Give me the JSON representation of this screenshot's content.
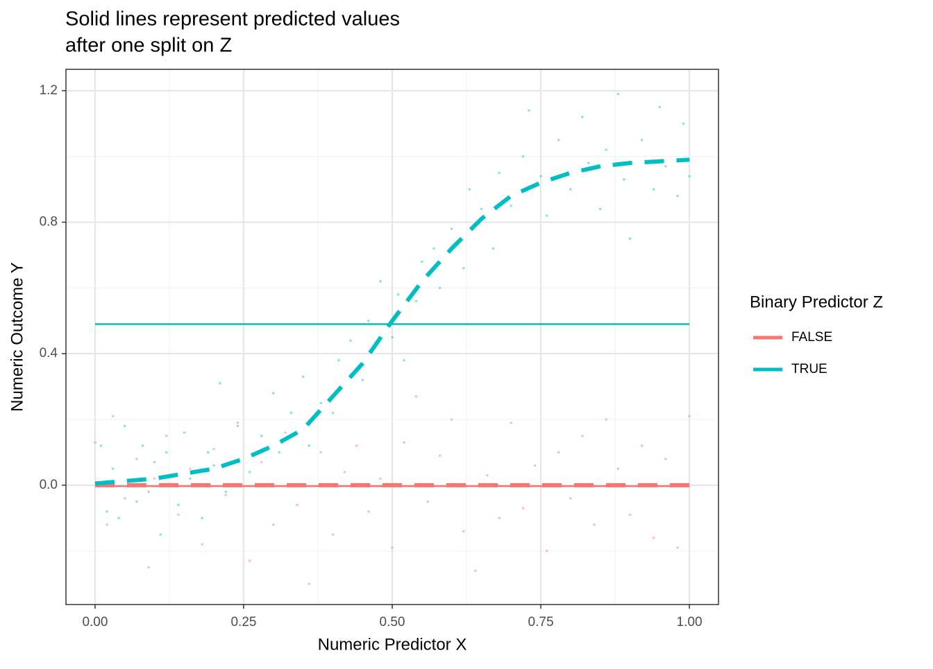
{
  "chart_data": {
    "type": "scatter",
    "title": [
      "Solid lines represent predicted values",
      "after one split on Z"
    ],
    "x_label": "Numeric Predictor X",
    "y_label": "Numeric Outcome Y",
    "legend_title": "Binary Predictor Z",
    "xlim": [
      -0.049,
      1.049
    ],
    "ylim": [
      -0.363,
      1.265
    ],
    "xticks": [
      {
        "value": 0,
        "label": "0.00"
      },
      0.25,
      {
        "value": 0.5,
        "label": "0.50"
      },
      0.75,
      {
        "value": 1,
        "label": "1.00"
      }
    ],
    "yticks": [
      {
        "value": 0,
        "label": "0.0"
      },
      0.4,
      0.8,
      1.2
    ],
    "grid": true,
    "series": [
      {
        "name": "FALSE",
        "color": "#F8766D",
        "x": [
          0.0,
          0.02,
          0.03,
          0.05,
          0.07,
          0.09,
          0.1,
          0.12,
          0.14,
          0.16,
          0.18,
          0.2,
          0.22,
          0.24,
          0.26,
          0.28,
          0.3,
          0.32,
          0.34,
          0.36,
          0.38,
          0.4,
          0.42,
          0.44,
          0.46,
          0.48,
          0.5,
          0.52,
          0.54,
          0.56,
          0.58,
          0.6,
          0.62,
          0.64,
          0.66,
          0.68,
          0.7,
          0.72,
          0.74,
          0.76,
          0.78,
          0.8,
          0.82,
          0.84,
          0.86,
          0.88,
          0.9,
          0.92,
          0.94,
          0.96,
          0.98,
          1.0
        ],
        "values": [
          0.13,
          -0.12,
          0.21,
          -0.04,
          0.08,
          -0.25,
          0.02,
          0.15,
          -0.09,
          0.05,
          -0.18,
          0.11,
          -0.03,
          0.19,
          -0.23,
          0.07,
          -0.12,
          0.16,
          -0.06,
          -0.3,
          0.1,
          -0.15,
          0.04,
          0.12,
          -0.08,
          0.02,
          -0.19,
          0.13,
          0.27,
          -0.05,
          0.09,
          0.2,
          -0.14,
          -0.26,
          0.03,
          -0.1,
          0.19,
          -0.07,
          0.06,
          -0.2,
          0.1,
          -0.04,
          0.15,
          -0.12,
          0.2,
          0.05,
          -0.09,
          0.12,
          -0.16,
          0.08,
          -0.19,
          0.21
        ],
        "smooth": {
          "x": [
            0,
            0.25,
            0.5,
            0.75,
            1
          ],
          "values": [
            0,
            0,
            0,
            0,
            0
          ]
        },
        "prediction": {
          "x": [
            0,
            1
          ],
          "values": [
            -0.003,
            -0.003
          ]
        }
      },
      {
        "name": "TRUE",
        "color": "#00BFC4",
        "x": [
          0.01,
          0.02,
          0.03,
          0.04,
          0.05,
          0.06,
          0.07,
          0.08,
          0.09,
          0.1,
          0.11,
          0.12,
          0.13,
          0.14,
          0.15,
          0.16,
          0.18,
          0.19,
          0.2,
          0.21,
          0.22,
          0.24,
          0.26,
          0.28,
          0.3,
          0.31,
          0.33,
          0.35,
          0.36,
          0.38,
          0.4,
          0.41,
          0.43,
          0.45,
          0.46,
          0.48,
          0.5,
          0.51,
          0.52,
          0.54,
          0.55,
          0.57,
          0.58,
          0.6,
          0.62,
          0.63,
          0.65,
          0.67,
          0.68,
          0.7,
          0.72,
          0.73,
          0.75,
          0.76,
          0.78,
          0.8,
          0.82,
          0.83,
          0.85,
          0.86,
          0.88,
          0.89,
          0.9,
          0.92,
          0.94,
          0.95,
          0.96,
          0.98,
          0.99,
          1.0
        ],
        "values": [
          0.12,
          -0.08,
          0.05,
          -0.1,
          0.18,
          0.0,
          -0.05,
          0.12,
          -0.02,
          0.07,
          -0.15,
          0.1,
          0.03,
          -0.06,
          0.16,
          0.02,
          -0.1,
          0.1,
          0.06,
          0.31,
          -0.02,
          0.18,
          0.04,
          0.15,
          0.28,
          0.1,
          0.22,
          0.33,
          0.12,
          0.25,
          0.22,
          0.38,
          0.44,
          0.32,
          0.5,
          0.62,
          0.45,
          0.58,
          0.38,
          0.56,
          0.68,
          0.72,
          0.6,
          0.78,
          0.66,
          0.9,
          0.84,
          0.72,
          0.95,
          0.85,
          1.0,
          1.14,
          0.94,
          0.82,
          1.05,
          0.9,
          1.12,
          0.98,
          0.84,
          1.02,
          1.19,
          0.93,
          0.75,
          1.05,
          0.9,
          1.15,
          0.97,
          0.88,
          1.1,
          0.94
        ],
        "smooth": {
          "x": [
            0,
            0.1,
            0.2,
            0.25,
            0.3,
            0.35,
            0.4,
            0.45,
            0.5,
            0.55,
            0.6,
            0.65,
            0.7,
            0.75,
            0.8,
            0.85,
            0.9,
            1.0
          ],
          "values": [
            0.005,
            0.02,
            0.05,
            0.08,
            0.12,
            0.17,
            0.27,
            0.37,
            0.5,
            0.62,
            0.72,
            0.81,
            0.88,
            0.92,
            0.95,
            0.97,
            0.98,
            0.99
          ]
        },
        "prediction": {
          "x": [
            0,
            1
          ],
          "values": [
            0.49,
            0.49
          ]
        }
      }
    ]
  }
}
